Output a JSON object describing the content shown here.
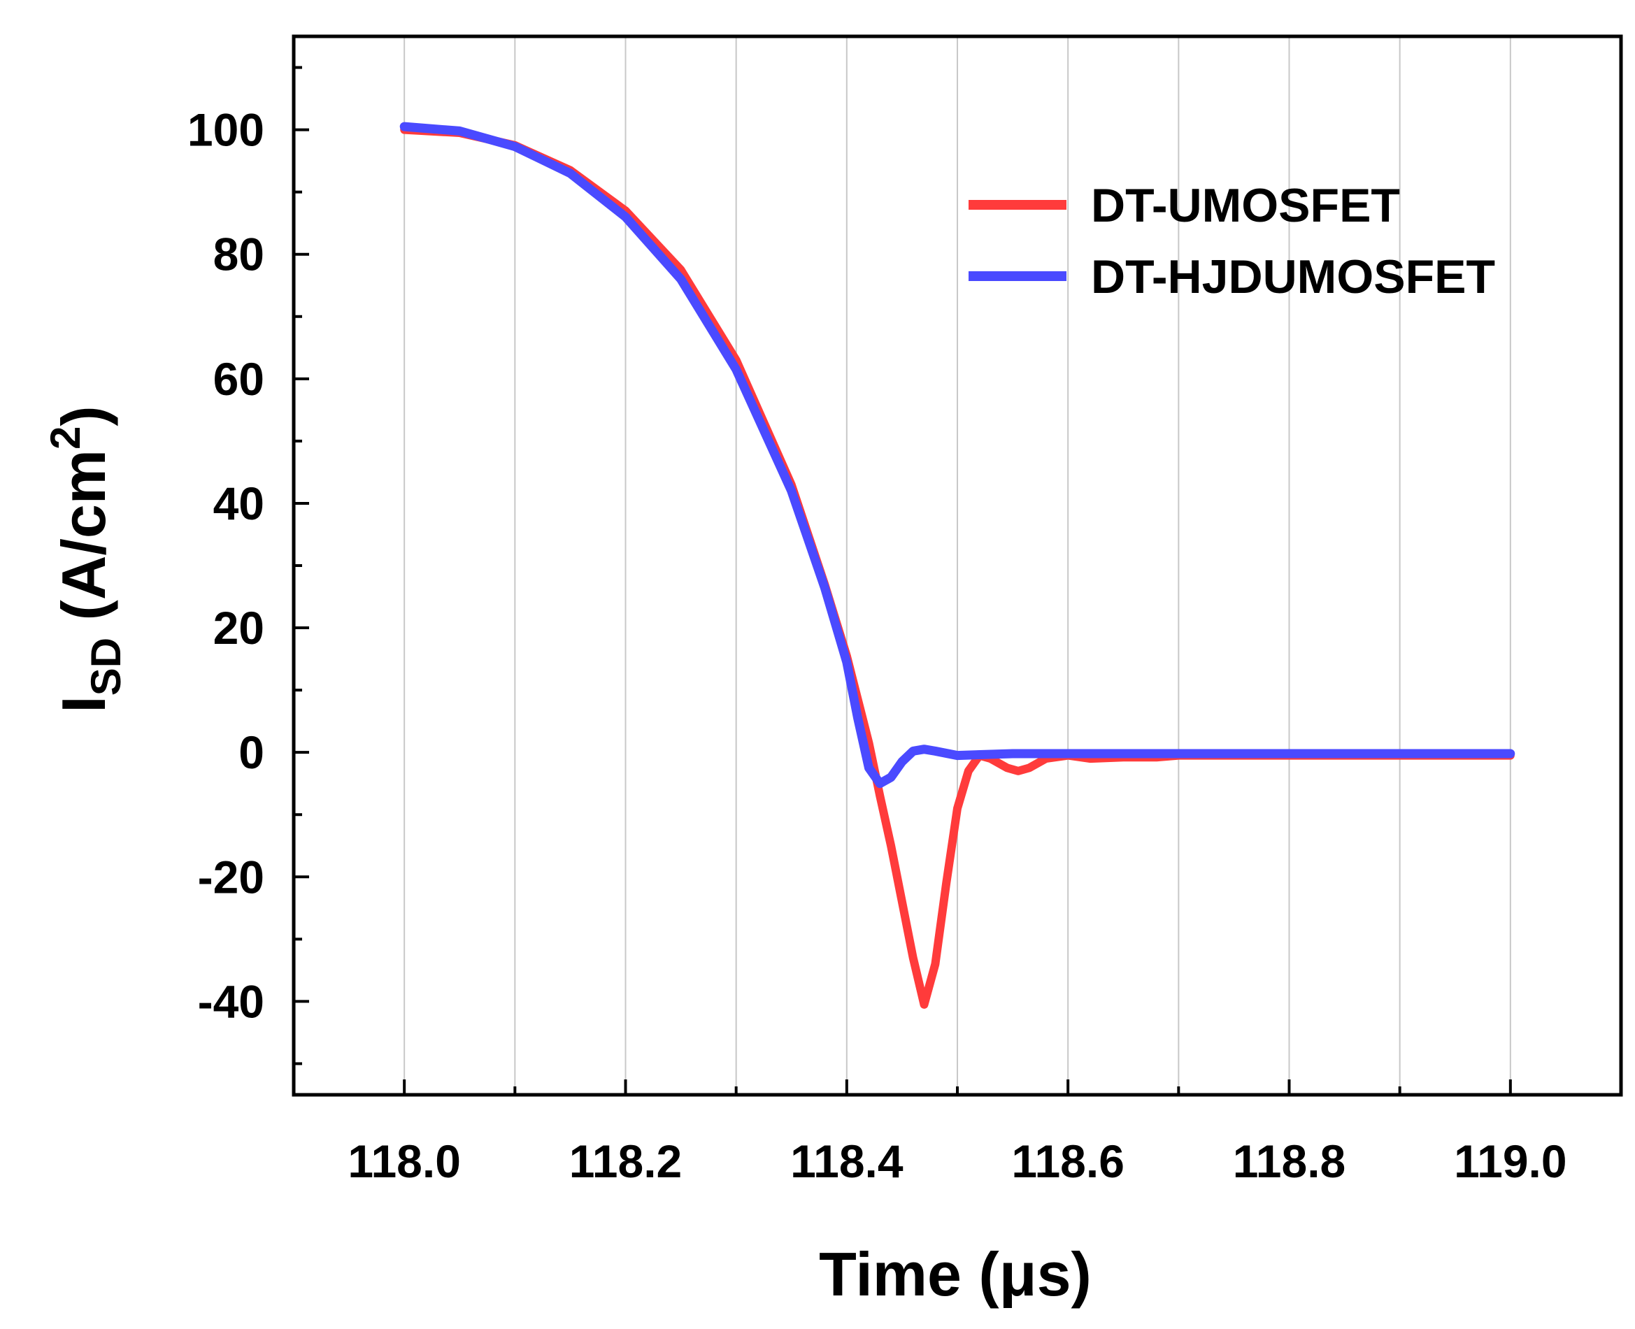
{
  "chart_data": {
    "type": "line",
    "xlabel": "Time (μs)",
    "ylabel": {
      "main": "I",
      "subscript": "SD",
      "unit_open": " (A/cm",
      "unit_superscript": "2",
      "unit_close": ")"
    },
    "xlim": [
      117.9,
      119.1
    ],
    "ylim": [
      -55,
      115
    ],
    "x_ticks": [
      118.0,
      118.2,
      118.4,
      118.6,
      118.8,
      119.0
    ],
    "x_tick_labels": [
      "118.0",
      "118.2",
      "118.4",
      "118.6",
      "118.8",
      "119.0"
    ],
    "x_minor_ticks": [
      118.1,
      118.3,
      118.5,
      118.7,
      118.9
    ],
    "y_ticks": [
      -40,
      -20,
      0,
      20,
      40,
      60,
      80,
      100
    ],
    "y_tick_labels": [
      "-40",
      "-20",
      "0",
      "20",
      "40",
      "60",
      "80",
      "100"
    ],
    "y_minor_ticks": [
      -50,
      -30,
      -10,
      10,
      30,
      50,
      70,
      90,
      110
    ],
    "grid": "vertical",
    "legend_position": "top-right",
    "series": [
      {
        "name": "DT-UMOSFET",
        "color": "#ff3b3b",
        "points": [
          [
            118.0,
            100.0
          ],
          [
            118.05,
            99.5
          ],
          [
            118.1,
            97.5
          ],
          [
            118.15,
            93.5
          ],
          [
            118.2,
            87.0
          ],
          [
            118.25,
            77.5
          ],
          [
            118.3,
            63.0
          ],
          [
            118.35,
            43.0
          ],
          [
            118.38,
            27.0
          ],
          [
            118.4,
            15.5
          ],
          [
            118.42,
            1.5
          ],
          [
            118.43,
            -7.0
          ],
          [
            118.44,
            -15.0
          ],
          [
            118.45,
            -24.0
          ],
          [
            118.46,
            -33.0
          ],
          [
            118.47,
            -40.5
          ],
          [
            118.48,
            -34.0
          ],
          [
            118.49,
            -21.0
          ],
          [
            118.5,
            -9.0
          ],
          [
            118.51,
            -3.0
          ],
          [
            118.52,
            -0.5
          ],
          [
            118.53,
            -1.0
          ],
          [
            118.545,
            -2.5
          ],
          [
            118.555,
            -3.0
          ],
          [
            118.565,
            -2.5
          ],
          [
            118.58,
            -1.0
          ],
          [
            118.6,
            -0.5
          ],
          [
            118.62,
            -1.0
          ],
          [
            118.65,
            -0.8
          ],
          [
            118.68,
            -0.8
          ],
          [
            118.7,
            -0.5
          ],
          [
            119.0,
            -0.5
          ]
        ]
      },
      {
        "name": "DT-HJDUMOSFET",
        "color": "#4a4aff",
        "points": [
          [
            118.0,
            100.5
          ],
          [
            118.05,
            99.8
          ],
          [
            118.1,
            97.3
          ],
          [
            118.15,
            93.0
          ],
          [
            118.2,
            86.0
          ],
          [
            118.25,
            76.0
          ],
          [
            118.3,
            61.5
          ],
          [
            118.35,
            42.0
          ],
          [
            118.38,
            26.5
          ],
          [
            118.4,
            14.5
          ],
          [
            118.41,
            5.5
          ],
          [
            118.42,
            -2.5
          ],
          [
            118.43,
            -5.0
          ],
          [
            118.44,
            -4.0
          ],
          [
            118.45,
            -1.5
          ],
          [
            118.46,
            0.2
          ],
          [
            118.47,
            0.5
          ],
          [
            118.48,
            0.2
          ],
          [
            118.5,
            -0.5
          ],
          [
            118.55,
            -0.2
          ],
          [
            118.6,
            -0.2
          ],
          [
            118.7,
            -0.2
          ],
          [
            118.8,
            -0.2
          ],
          [
            119.0,
            -0.2
          ]
        ]
      }
    ]
  }
}
